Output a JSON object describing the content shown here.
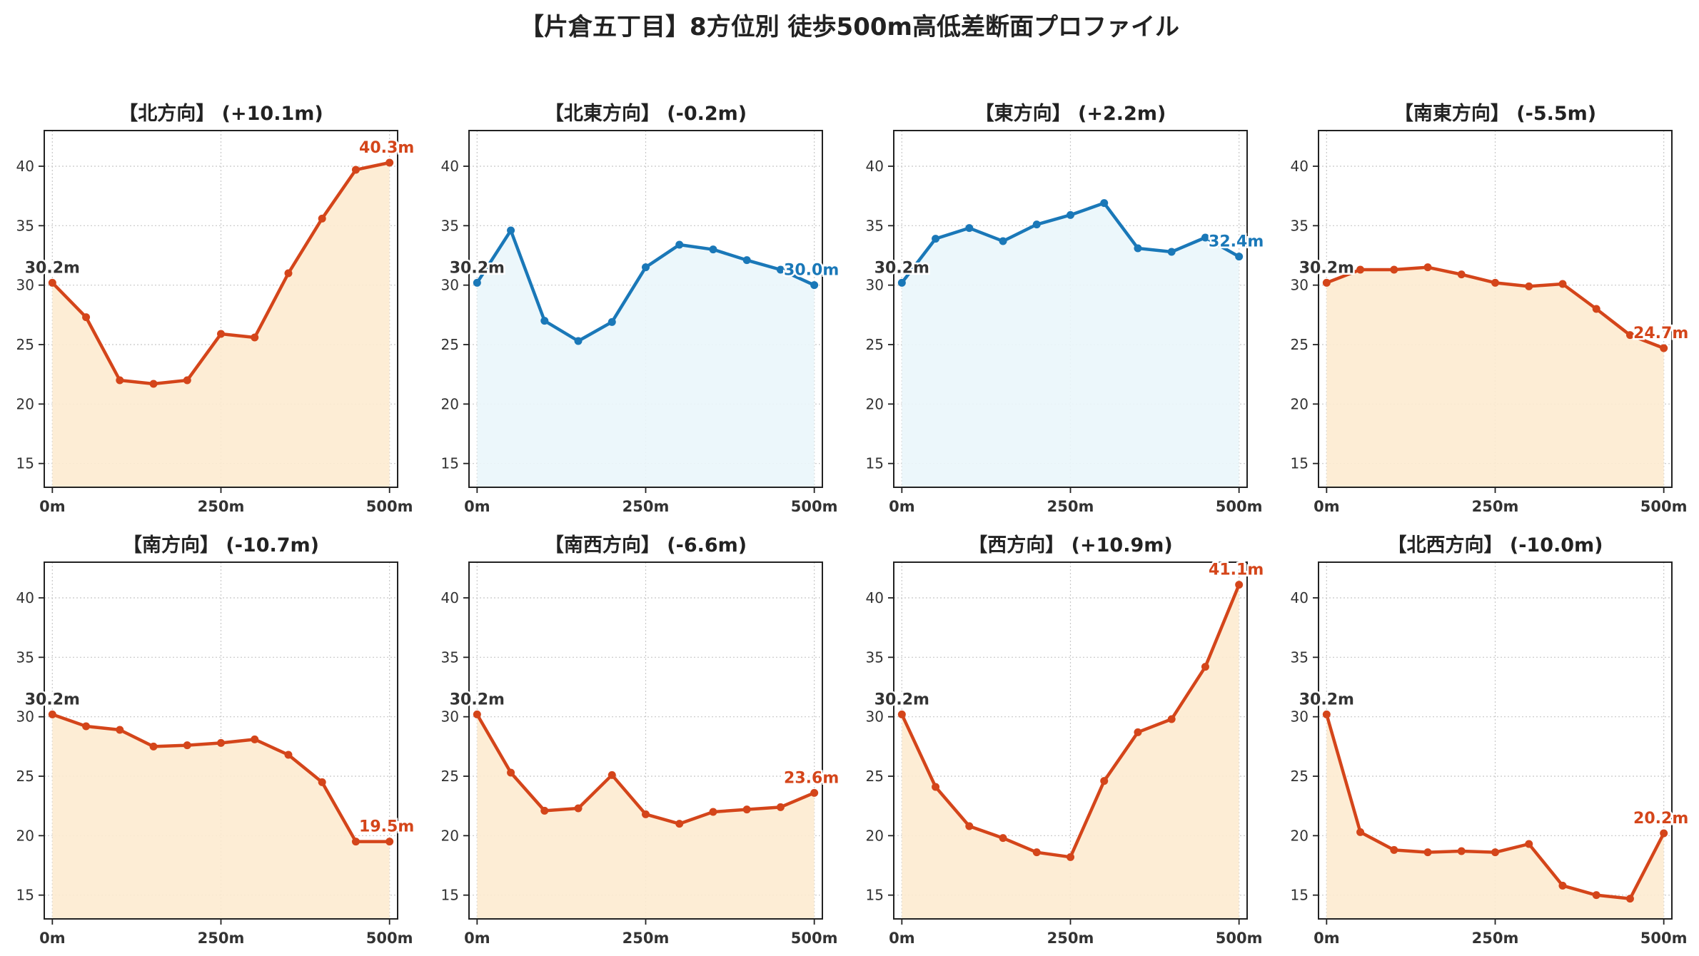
{
  "page_title": "【片倉五丁目】8方位別 徒歩500m高低差断面プロファイル",
  "colors": {
    "up_line": "#d4451a",
    "up_fill": "#fdebd0",
    "flat_line": "#1a78b8",
    "flat_fill": "#eaf6fb",
    "start_label": "#333333",
    "grid": "#c8c8c8"
  },
  "chart_data": [
    {
      "type": "area",
      "title": "【北方向】 (+10.1m)",
      "style": "up",
      "x": [
        0,
        50,
        100,
        150,
        200,
        250,
        300,
        350,
        400,
        450,
        500
      ],
      "values": [
        30.2,
        27.3,
        22.0,
        21.7,
        22.0,
        25.9,
        25.6,
        31.0,
        35.6,
        39.7,
        40.3
      ],
      "start_label": "30.2m",
      "end_label": "40.3m",
      "xticks": [
        "0m",
        "250m",
        "500m"
      ],
      "yticks": [
        "15",
        "20",
        "25",
        "30",
        "35",
        "40"
      ],
      "ylim": [
        13,
        43
      ],
      "xlim": [
        -12,
        512
      ],
      "grid": true
    },
    {
      "type": "area",
      "title": "【北東方向】 (-0.2m)",
      "style": "flat",
      "x": [
        0,
        50,
        100,
        150,
        200,
        250,
        300,
        350,
        400,
        450,
        500
      ],
      "values": [
        30.2,
        34.6,
        27.0,
        25.3,
        26.9,
        31.5,
        33.4,
        33.0,
        32.1,
        31.3,
        30.0
      ],
      "start_label": "30.2m",
      "end_label": "30.0m",
      "xticks": [
        "0m",
        "250m",
        "500m"
      ],
      "yticks": [
        "15",
        "20",
        "25",
        "30",
        "35",
        "40"
      ],
      "ylim": [
        13,
        43
      ],
      "xlim": [
        -12,
        512
      ],
      "grid": true
    },
    {
      "type": "area",
      "title": "【東方向】 (+2.2m)",
      "style": "flat",
      "x": [
        0,
        50,
        100,
        150,
        200,
        250,
        300,
        350,
        400,
        450,
        500
      ],
      "values": [
        30.2,
        33.9,
        34.8,
        33.7,
        35.1,
        35.9,
        36.9,
        33.1,
        32.8,
        34.0,
        32.4
      ],
      "start_label": "30.2m",
      "end_label": "32.4m",
      "xticks": [
        "0m",
        "250m",
        "500m"
      ],
      "yticks": [
        "15",
        "20",
        "25",
        "30",
        "35",
        "40"
      ],
      "ylim": [
        13,
        43
      ],
      "xlim": [
        -12,
        512
      ],
      "grid": true
    },
    {
      "type": "area",
      "title": "【南東方向】 (-5.5m)",
      "style": "up",
      "x": [
        0,
        50,
        100,
        150,
        200,
        250,
        300,
        350,
        400,
        450,
        500
      ],
      "values": [
        30.2,
        31.3,
        31.3,
        31.5,
        30.9,
        30.2,
        29.9,
        30.1,
        28.0,
        25.8,
        24.7
      ],
      "start_label": "30.2m",
      "end_label": "24.7m",
      "xticks": [
        "0m",
        "250m",
        "500m"
      ],
      "yticks": [
        "15",
        "20",
        "25",
        "30",
        "35",
        "40"
      ],
      "ylim": [
        13,
        43
      ],
      "xlim": [
        -12,
        512
      ],
      "grid": true
    },
    {
      "type": "area",
      "title": "【南方向】 (-10.7m)",
      "style": "up",
      "x": [
        0,
        50,
        100,
        150,
        200,
        250,
        300,
        350,
        400,
        450,
        500
      ],
      "values": [
        30.2,
        29.2,
        28.9,
        27.5,
        27.6,
        27.8,
        28.1,
        26.8,
        24.5,
        19.5,
        19.5
      ],
      "start_label": "30.2m",
      "end_label": "19.5m",
      "xticks": [
        "0m",
        "250m",
        "500m"
      ],
      "yticks": [
        "15",
        "20",
        "25",
        "30",
        "35",
        "40"
      ],
      "ylim": [
        13,
        43
      ],
      "xlim": [
        -12,
        512
      ],
      "grid": true
    },
    {
      "type": "area",
      "title": "【南西方向】 (-6.6m)",
      "style": "up",
      "x": [
        0,
        50,
        100,
        150,
        200,
        250,
        300,
        350,
        400,
        450,
        500
      ],
      "values": [
        30.2,
        25.3,
        22.1,
        22.3,
        25.1,
        21.8,
        21.0,
        22.0,
        22.2,
        22.4,
        23.6
      ],
      "start_label": "30.2m",
      "end_label": "23.6m",
      "xticks": [
        "0m",
        "250m",
        "500m"
      ],
      "yticks": [
        "15",
        "20",
        "25",
        "30",
        "35",
        "40"
      ],
      "ylim": [
        13,
        43
      ],
      "xlim": [
        -12,
        512
      ],
      "grid": true
    },
    {
      "type": "area",
      "title": "【西方向】 (+10.9m)",
      "style": "up",
      "x": [
        0,
        50,
        100,
        150,
        200,
        250,
        300,
        350,
        400,
        450,
        500
      ],
      "values": [
        30.2,
        24.1,
        20.8,
        19.8,
        18.6,
        18.2,
        24.6,
        28.7,
        29.8,
        34.2,
        41.1
      ],
      "start_label": "30.2m",
      "end_label": "41.1m",
      "xticks": [
        "0m",
        "250m",
        "500m"
      ],
      "yticks": [
        "15",
        "20",
        "25",
        "30",
        "35",
        "40"
      ],
      "ylim": [
        13,
        43
      ],
      "xlim": [
        -12,
        512
      ],
      "grid": true
    },
    {
      "type": "area",
      "title": "【北西方向】 (-10.0m)",
      "style": "up",
      "x": [
        0,
        50,
        100,
        150,
        200,
        250,
        300,
        350,
        400,
        450,
        500
      ],
      "values": [
        30.2,
        20.3,
        18.8,
        18.6,
        18.7,
        18.6,
        19.3,
        15.8,
        15.0,
        14.7,
        20.2
      ],
      "start_label": "30.2m",
      "end_label": "20.2m",
      "xticks": [
        "0m",
        "250m",
        "500m"
      ],
      "yticks": [
        "15",
        "20",
        "25",
        "30",
        "35",
        "40"
      ],
      "ylim": [
        13,
        43
      ],
      "xlim": [
        -12,
        512
      ],
      "grid": true
    }
  ]
}
